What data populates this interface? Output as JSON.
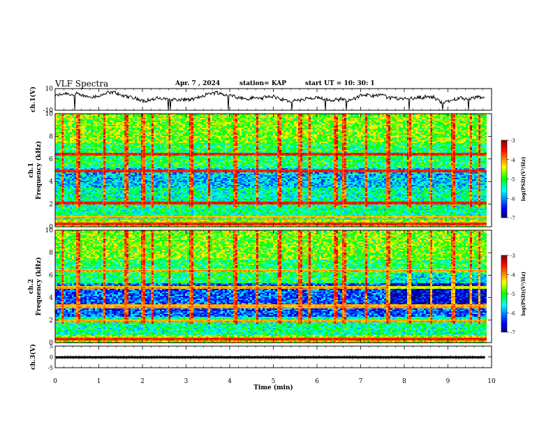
{
  "header": {
    "title": "VLF Spectra",
    "date": "Apr. 7 , 2024",
    "station": "station= KAP",
    "start": "start UT = 10: 30: 1"
  },
  "chart_data": [
    {
      "type": "line",
      "panel": "ch1-waveform",
      "ylabel": "ch.1(V)",
      "ylim": [
        -10,
        10
      ],
      "yticks": [
        "10",
        "-10"
      ],
      "xlim": [
        0,
        10
      ],
      "data_extent_min": [
        0,
        9.85
      ],
      "color": "#000000"
    },
    {
      "type": "heatmap",
      "panel": "ch1-spectrogram",
      "ylabel_line1": "ch.1",
      "ylabel_line2": "Frequency (kHz)",
      "ylim": [
        0,
        10
      ],
      "yticks": [
        "0",
        "2",
        "4",
        "6",
        "8",
        "10"
      ],
      "xlim": [
        0,
        10
      ],
      "data_extent_min": [
        0,
        9.85
      ],
      "colorbar": {
        "label": "log(PSD)(V²/Hz)",
        "range": [
          -7,
          -3
        ],
        "ticks": [
          "-3",
          "-4",
          "-5",
          "-6",
          "-7"
        ]
      },
      "bands_khz": [
        {
          "f": 6.5,
          "level": "high"
        },
        {
          "f": 5.0,
          "level": "high"
        },
        {
          "f": 2.2,
          "level": "high"
        },
        {
          "f": 0.9,
          "level": "medium"
        },
        {
          "f": 0.3,
          "level": "high"
        }
      ],
      "impulses_min": [
        0.15,
        0.5,
        1.1,
        1.6,
        2.0,
        2.2,
        2.6,
        3.1,
        3.5,
        4.1,
        4.6,
        5.1,
        5.6,
        5.8,
        6.4,
        6.6,
        7.1,
        7.6,
        8.1,
        8.6,
        9.1,
        9.5,
        9.7
      ]
    },
    {
      "type": "heatmap",
      "panel": "ch2-spectrogram",
      "ylabel_line1": "ch.2",
      "ylabel_line2": "Frequency (kHz)",
      "ylim": [
        0,
        10
      ],
      "yticks": [
        "0",
        "2",
        "4",
        "6",
        "8",
        "10"
      ],
      "xlim": [
        0,
        10
      ],
      "data_extent_min": [
        0,
        9.85
      ],
      "colorbar": {
        "label": "log(PSD)(V²/Hz)",
        "range": [
          -7,
          -3
        ],
        "ticks": [
          "-3",
          "-4",
          "-5",
          "-6",
          "-7"
        ]
      },
      "bands_khz": [
        {
          "f": 6.5,
          "level": "medium"
        },
        {
          "f": 5.0,
          "level": "medium"
        },
        {
          "f": 3.3,
          "level": "medium"
        },
        {
          "f": 2.0,
          "level": "medium"
        },
        {
          "f": 0.4,
          "level": "high"
        }
      ],
      "impulses_min": [
        0.15,
        0.5,
        1.1,
        1.6,
        2.0,
        2.2,
        2.6,
        3.1,
        3.5,
        4.1,
        4.6,
        5.1,
        5.6,
        5.8,
        6.4,
        6.6,
        7.1,
        7.6,
        8.1,
        8.6,
        9.1,
        9.5,
        9.7
      ]
    },
    {
      "type": "line",
      "panel": "ch3-waveform",
      "ylabel": "ch.3(V)",
      "ylim": [
        -5,
        5
      ],
      "yticks": [
        "5",
        "0",
        "-5"
      ],
      "xlabel": "Time (min)",
      "xlim": [
        0,
        10
      ],
      "xticks": [
        "0",
        "1",
        "2",
        "3",
        "4",
        "5",
        "6",
        "7",
        "8",
        "9",
        "10"
      ],
      "data_extent_min": [
        0,
        9.85
      ],
      "level_v": [
        -0.7,
        0.3
      ],
      "color": "#000000"
    }
  ]
}
